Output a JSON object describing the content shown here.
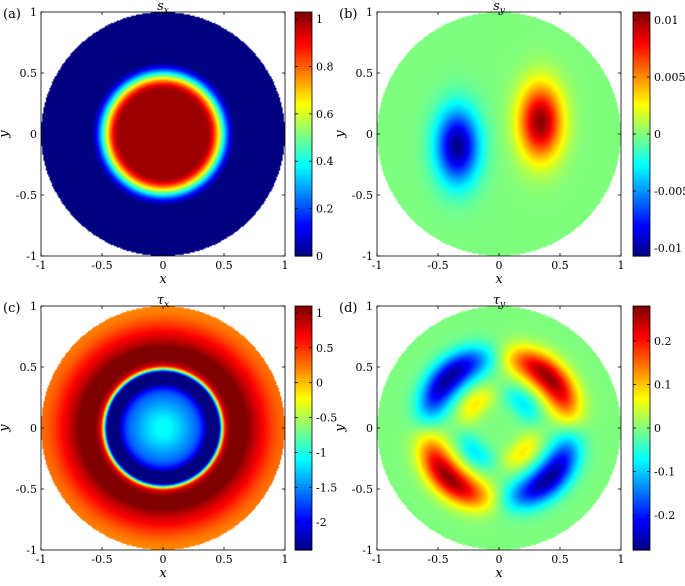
{
  "chart_data": [
    {
      "type": "heatmap",
      "panel_label": "(a)",
      "title_sym": "s",
      "title_sub": "x",
      "xlabel": "x",
      "ylabel": "y",
      "xlim": [
        -1,
        1
      ],
      "ylim": [
        -1,
        1
      ],
      "xticks": [
        "-1",
        "-0.5",
        "0",
        "0.5",
        "1"
      ],
      "yticks": [
        "1",
        "0.5",
        "0",
        "-0.5",
        "-1"
      ],
      "colorbar_ticks": [
        "1",
        "0.8",
        "0.6",
        "0.4",
        "0.2",
        "0"
      ],
      "colorbar_values": [
        1,
        0.8,
        0.6,
        0.4,
        0.2,
        0
      ],
      "colorbar_range": [
        0,
        1.03
      ],
      "field": "flat-top disk: ~1 for r<0.4, falling to 0 near r≈0.6, 0 outside"
    },
    {
      "type": "heatmap",
      "panel_label": "(b)",
      "title_sym": "s",
      "title_sub": "y",
      "xlabel": "x",
      "ylabel": "y",
      "xlim": [
        -1,
        1
      ],
      "ylim": [
        -1,
        1
      ],
      "xticks": [
        "-1",
        "-0.5",
        "0",
        "0.5",
        "1"
      ],
      "yticks": [
        "1",
        "0.5",
        "0",
        "-0.5",
        "-1"
      ],
      "colorbar_ticks": [
        "0.01",
        "0.005",
        "0",
        "-0.005",
        "-0.01"
      ],
      "colorbar_values": [
        0.01,
        0.005,
        0,
        -0.005,
        -0.01
      ],
      "colorbar_range": [
        -0.0107,
        0.0107
      ],
      "field": "dipole: positive lobe right (~+0.01), negative lobe left (~-0.01)"
    },
    {
      "type": "heatmap",
      "panel_label": "(c)",
      "title_sym": "τ",
      "title_sub": "x",
      "xlabel": "x",
      "ylabel": "y",
      "xlim": [
        -1,
        1
      ],
      "ylim": [
        -1,
        1
      ],
      "xticks": [
        "-1",
        "-0.5",
        "0",
        "0.5",
        "1"
      ],
      "yticks": [
        "1",
        "0.5",
        "0",
        "-0.5",
        "-1"
      ],
      "colorbar_ticks": [
        "1",
        "0.5",
        "0",
        "-0.5",
        "-1",
        "-1.5",
        "-2"
      ],
      "colorbar_values": [
        1,
        0.5,
        0,
        -0.5,
        -1,
        -1.5,
        -2
      ],
      "colorbar_range": [
        -2.4,
        1.1
      ],
      "field": "center ~-1, inner ring ~-2.3 at r≈0.4, outer ring ~+1 at r≈0.6, ~0.2 at rim"
    },
    {
      "type": "heatmap",
      "panel_label": "(d)",
      "title_sym": "τ",
      "title_sub": "y",
      "xlabel": "x",
      "ylabel": "y",
      "xlim": [
        -1,
        1
      ],
      "ylim": [
        -1,
        1
      ],
      "xticks": [
        "-1",
        "-0.5",
        "0",
        "0.5",
        "1"
      ],
      "yticks": [
        "1",
        "0.5",
        "0",
        "-0.5",
        "-1"
      ],
      "colorbar_ticks": [
        "0.2",
        "0.1",
        "0",
        "-0.1",
        "-0.2"
      ],
      "colorbar_values": [
        0.2,
        0.1,
        0,
        -0.1,
        -0.2
      ],
      "colorbar_range": [
        -0.28,
        0.28
      ],
      "field": "quadrupole: positive lobes upper-right and lower-left (~+0.27), negative lobes upper-left and lower-right (~-0.27)"
    }
  ]
}
